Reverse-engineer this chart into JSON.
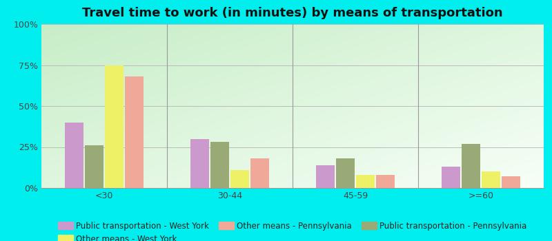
{
  "title": "Travel time to work (in minutes) by means of transportation",
  "categories": [
    "<30",
    "30-44",
    "45-59",
    ">=60"
  ],
  "series": [
    {
      "name": "Public transportation - West York",
      "color": "#cc99cc",
      "values": [
        40,
        30,
        14,
        13
      ]
    },
    {
      "name": "Public transportation - Pennsylvania",
      "color": "#99aa77",
      "values": [
        26,
        28,
        18,
        27
      ]
    },
    {
      "name": "Other means - West York",
      "color": "#eef066",
      "values": [
        75,
        11,
        8,
        10
      ]
    },
    {
      "name": "Other means - Pennsylvania",
      "color": "#f0a898",
      "values": [
        68,
        18,
        8,
        7
      ]
    }
  ],
  "legend_order": [
    0,
    2,
    3,
    1
  ],
  "legend_ncol": 3,
  "ylim": [
    0,
    100
  ],
  "yticks": [
    0,
    25,
    50,
    75,
    100
  ],
  "ytick_labels": [
    "0%",
    "25%",
    "50%",
    "75%",
    "100%"
  ],
  "outer_background": "#00eeee",
  "bar_width": 0.15,
  "title_fontsize": 13,
  "legend_fontsize": 8.5,
  "tick_fontsize": 9,
  "grid_color": "#bbbbbb"
}
